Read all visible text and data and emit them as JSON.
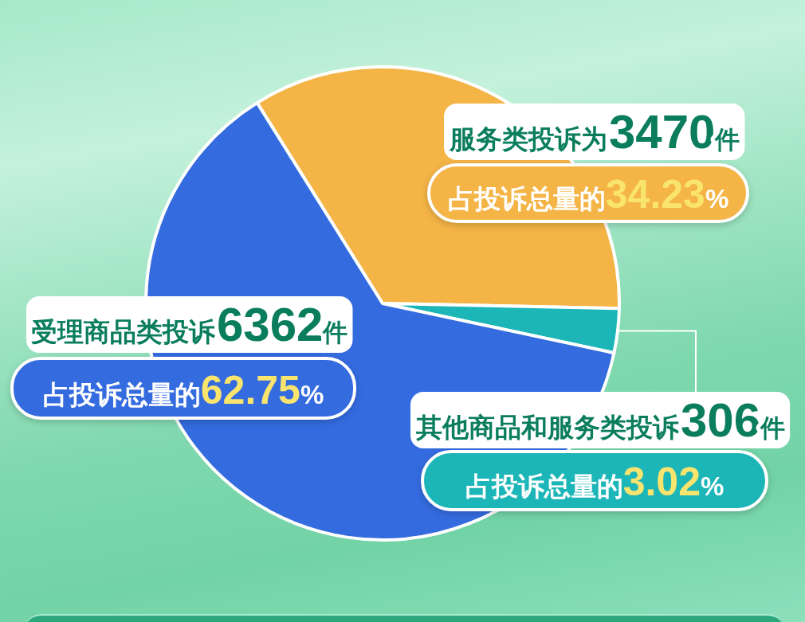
{
  "chart_data": {
    "type": "pie",
    "categories": [
      "服务类投诉为",
      "其他商品和服务类投诉",
      "受理商品类投诉"
    ],
    "values": [
      3470,
      306,
      6362
    ],
    "colors": [
      "#f4b446",
      "#1db6b8",
      "#346bdf"
    ],
    "value_labels": [
      "3470件",
      "306件",
      "6362件"
    ],
    "annotations": [
      "占投诉总量的34.23%",
      "占投诉总量的3.02%",
      "占投诉总量的62.75%"
    ]
  }
}
